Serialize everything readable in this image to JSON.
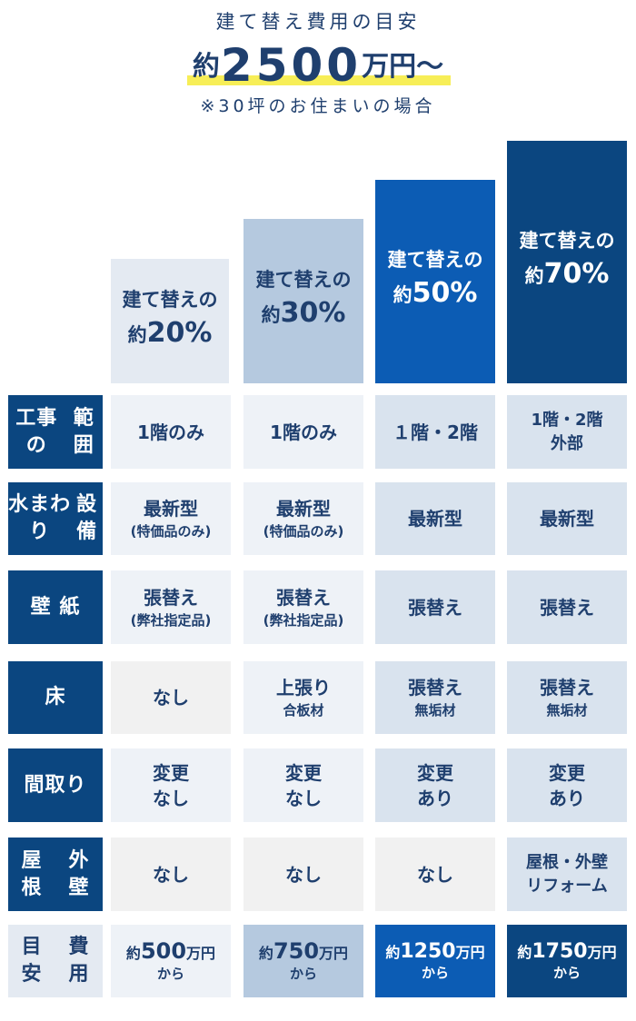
{
  "header": {
    "title": "建て替え費用の目安",
    "price_prefix": "約",
    "price_number": "2500",
    "price_unit": "万円～",
    "note": "※30坪のお住まいの場合"
  },
  "tiers": [
    {
      "label": "建て替えの",
      "prefix": "約",
      "percent": "20%"
    },
    {
      "label": "建て替えの",
      "prefix": "約",
      "percent": "30%"
    },
    {
      "label": "建て替えの",
      "prefix": "約",
      "percent": "50%"
    },
    {
      "label": "建て替えの",
      "prefix": "約",
      "percent": "70%"
    }
  ],
  "rows": [
    {
      "header": [
        "工事の",
        "範囲"
      ],
      "cells": [
        {
          "main": [
            "1階のみ"
          ],
          "sub": ""
        },
        {
          "main": [
            "1階のみ"
          ],
          "sub": ""
        },
        {
          "main": [
            "１階・2階"
          ],
          "sub": ""
        },
        {
          "main": [],
          "sub": "1階・2階 外部"
        }
      ]
    },
    {
      "header": [
        "水まわり",
        "設備"
      ],
      "cells": [
        {
          "main": [
            "最新型"
          ],
          "sub": "(特価品のみ)"
        },
        {
          "main": [
            "最新型"
          ],
          "sub": "(特価品のみ)"
        },
        {
          "main": [
            "最新型"
          ],
          "sub": ""
        },
        {
          "main": [
            "最新型"
          ],
          "sub": ""
        }
      ]
    },
    {
      "header": [
        "壁 紙"
      ],
      "cells": [
        {
          "main": [
            "張替え"
          ],
          "sub": "(弊社指定品)"
        },
        {
          "main": [
            "張替え"
          ],
          "sub": "(弊社指定品)"
        },
        {
          "main": [
            "張替え"
          ],
          "sub": ""
        },
        {
          "main": [
            "張替え"
          ],
          "sub": ""
        }
      ]
    },
    {
      "header": [
        "床"
      ],
      "cells": [
        {
          "main": [
            "なし"
          ],
          "sub": ""
        },
        {
          "main": [
            "上張り"
          ],
          "sub": "合板材"
        },
        {
          "main": [
            "張替え"
          ],
          "sub": "無垢材"
        },
        {
          "main": [
            "張替え"
          ],
          "sub": "無垢材"
        }
      ]
    },
    {
      "header": [
        "間取り"
      ],
      "cells": [
        {
          "main": [
            "変更",
            "なし"
          ],
          "sub": ""
        },
        {
          "main": [
            "変更",
            "なし"
          ],
          "sub": ""
        },
        {
          "main": [
            "変更",
            "あり"
          ],
          "sub": ""
        },
        {
          "main": [
            "変更",
            "あり"
          ],
          "sub": ""
        }
      ]
    },
    {
      "header": [
        "屋 根",
        "外 壁"
      ],
      "cells": [
        {
          "main": [
            "なし"
          ],
          "sub": ""
        },
        {
          "main": [
            "なし"
          ],
          "sub": ""
        },
        {
          "main": [
            "なし"
          ],
          "sub": ""
        },
        {
          "main": [],
          "sub": "屋根・外壁 リフォーム"
        }
      ]
    }
  ],
  "cost_row": {
    "header": [
      "目 安",
      "費 用"
    ],
    "cells": [
      {
        "prefix": "約",
        "amount": "500",
        "unit": "万円",
        "suffix": "から"
      },
      {
        "prefix": "約",
        "amount": "750",
        "unit": "万円",
        "suffix": "から"
      },
      {
        "prefix": "約",
        "amount": "1250",
        "unit": "万円",
        "suffix": "から"
      },
      {
        "prefix": "約",
        "amount": "1750",
        "unit": "万円",
        "suffix": "から"
      }
    ]
  },
  "colors": {
    "navy": "#0b4680",
    "tier_20": "#e4eaf2",
    "tier_30": "#b5c9df",
    "tier_50": "#0c5cb4",
    "tier_70": "#0b4680",
    "cell_light": "#eef2f7",
    "cell_mid": "#d9e3ee",
    "cell_grey": "#f1f1f1",
    "highlight": "#f7ee57",
    "text": "#1f3f6e"
  }
}
